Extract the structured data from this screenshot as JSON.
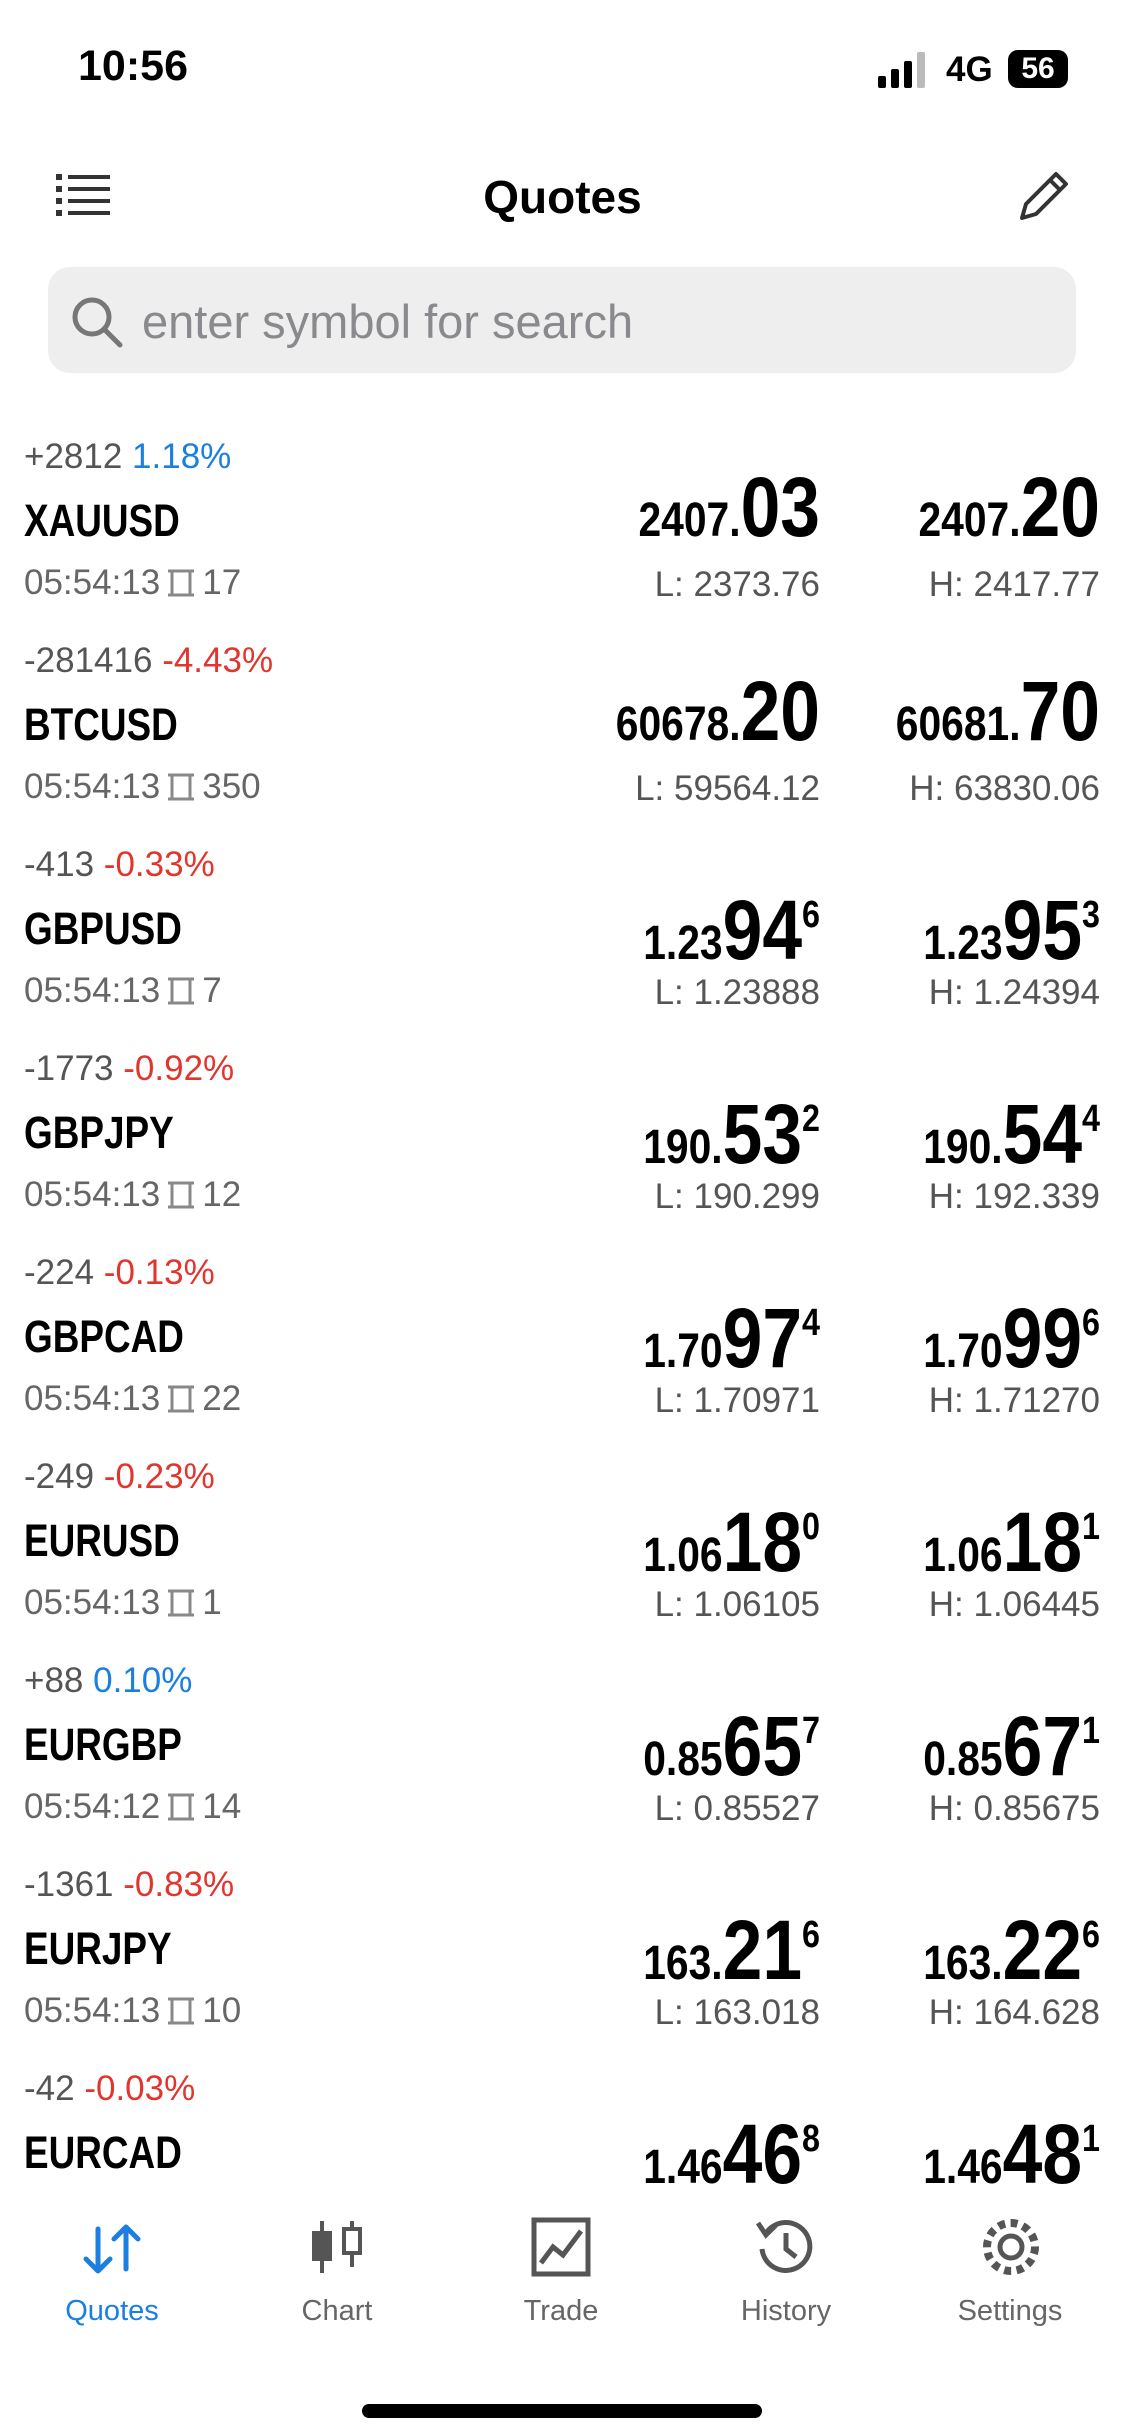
{
  "status": {
    "time": "10:56",
    "network": "4G",
    "battery": "56"
  },
  "header": {
    "title": "Quotes"
  },
  "search": {
    "placeholder": "enter symbol for search"
  },
  "quotes": [
    {
      "change": "+2812",
      "percent": "1.18%",
      "symbol": "XAUUSD",
      "time": "05:54:13",
      "spread": "17",
      "bid": {
        "small": "2407.",
        "big": "03"
      },
      "ask": {
        "small": "2407.",
        "big": "20"
      },
      "low": "L: 2373.76",
      "high": "H: 2417.77"
    },
    {
      "change": "-281416",
      "percent": "-4.43%",
      "symbol": "BTCUSD",
      "time": "05:54:13",
      "spread": "350",
      "bid": {
        "small": "60678.",
        "big": "20"
      },
      "ask": {
        "small": "60681.",
        "big": "70"
      },
      "low": "L: 59564.12",
      "high": "H: 63830.06"
    },
    {
      "change": "-413",
      "percent": "-0.33%",
      "symbol": "GBPUSD",
      "time": "05:54:13",
      "spread": "7",
      "bid": {
        "small": "1.23",
        "big": "94",
        "sup": "6"
      },
      "ask": {
        "small": "1.23",
        "big": "95",
        "sup": "3"
      },
      "low": "L: 1.23888",
      "high": "H: 1.24394"
    },
    {
      "change": "-1773",
      "percent": "-0.92%",
      "symbol": "GBPJPY",
      "time": "05:54:13",
      "spread": "12",
      "bid": {
        "small": "190.",
        "big": "53",
        "sup": "2"
      },
      "ask": {
        "small": "190.",
        "big": "54",
        "sup": "4"
      },
      "low": "L: 190.299",
      "high": "H: 192.339"
    },
    {
      "change": "-224",
      "percent": "-0.13%",
      "symbol": "GBPCAD",
      "time": "05:54:13",
      "spread": "22",
      "bid": {
        "small": "1.70",
        "big": "97",
        "sup": "4"
      },
      "ask": {
        "small": "1.70",
        "big": "99",
        "sup": "6"
      },
      "low": "L: 1.70971",
      "high": "H: 1.71270"
    },
    {
      "change": "-249",
      "percent": "-0.23%",
      "symbol": "EURUSD",
      "time": "05:54:13",
      "spread": "1",
      "bid": {
        "small": "1.06",
        "big": "18",
        "sup": "0"
      },
      "ask": {
        "small": "1.06",
        "big": "18",
        "sup": "1"
      },
      "low": "L: 1.06105",
      "high": "H: 1.06445"
    },
    {
      "change": "+88",
      "percent": "0.10%",
      "symbol": "EURGBP",
      "time": "05:54:12",
      "spread": "14",
      "bid": {
        "small": "0.85",
        "big": "65",
        "sup": "7"
      },
      "ask": {
        "small": "0.85",
        "big": "67",
        "sup": "1"
      },
      "low": "L: 0.85527",
      "high": "H: 0.85675"
    },
    {
      "change": "-1361",
      "percent": "-0.83%",
      "symbol": "EURJPY",
      "time": "05:54:13",
      "spread": "10",
      "bid": {
        "small": "163.",
        "big": "21",
        "sup": "6"
      },
      "ask": {
        "small": "163.",
        "big": "22",
        "sup": "6"
      },
      "low": "L: 163.018",
      "high": "H: 164.628"
    },
    {
      "change": "-42",
      "percent": "-0.03%",
      "symbol": "EURCAD",
      "bid": {
        "small": "1.46",
        "big": "46",
        "sup": "8"
      },
      "ask": {
        "small": "1.46",
        "big": "48",
        "sup": "1"
      }
    }
  ],
  "tabs": [
    {
      "label": "Quotes",
      "active": true
    },
    {
      "label": "Chart"
    },
    {
      "label": "Trade"
    },
    {
      "label": "History"
    },
    {
      "label": "Settings"
    }
  ]
}
